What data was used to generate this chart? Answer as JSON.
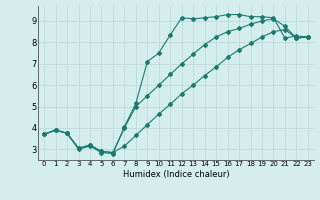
{
  "title": "",
  "xlabel": "Humidex (Indice chaleur)",
  "bg_color": "#d4eeee",
  "grid_color": "#c0d8d8",
  "line_color": "#1a7a6e",
  "xlim": [
    -0.5,
    23.5
  ],
  "ylim": [
    2.5,
    9.7
  ],
  "xticks": [
    0,
    1,
    2,
    3,
    4,
    5,
    6,
    7,
    8,
    9,
    10,
    11,
    12,
    13,
    14,
    15,
    16,
    17,
    18,
    19,
    20,
    21,
    22,
    23
  ],
  "yticks": [
    3,
    4,
    5,
    6,
    7,
    8,
    9
  ],
  "line1_x": [
    0,
    1,
    2,
    3,
    4,
    5,
    6,
    7,
    8,
    9,
    10,
    11,
    12,
    13,
    14,
    15,
    16,
    17,
    18,
    19,
    20,
    21,
    22,
    23
  ],
  "line1_y": [
    3.7,
    3.9,
    3.75,
    3.0,
    3.15,
    2.85,
    2.8,
    4.05,
    5.15,
    7.1,
    7.5,
    8.35,
    9.15,
    9.1,
    9.15,
    9.2,
    9.3,
    9.3,
    9.2,
    9.2,
    9.15,
    8.2,
    8.3,
    8.25
  ],
  "line2_x": [
    0,
    1,
    2,
    3,
    4,
    5,
    6,
    7,
    8,
    9,
    10,
    11,
    12,
    13,
    14,
    15,
    16,
    17,
    18,
    19,
    20,
    21,
    22,
    23
  ],
  "line2_y": [
    3.7,
    3.9,
    3.75,
    3.05,
    3.2,
    2.9,
    2.85,
    4.0,
    5.0,
    5.5,
    6.0,
    6.5,
    7.0,
    7.45,
    7.9,
    8.25,
    8.5,
    8.65,
    8.85,
    9.0,
    9.1,
    8.75,
    8.2,
    8.25
  ],
  "line3_x": [
    0,
    1,
    2,
    3,
    4,
    5,
    6,
    7,
    8,
    9,
    10,
    11,
    12,
    13,
    14,
    15,
    16,
    17,
    18,
    19,
    20,
    21,
    22,
    23
  ],
  "line3_y": [
    3.7,
    3.9,
    3.75,
    3.05,
    3.2,
    2.9,
    2.85,
    3.15,
    3.65,
    4.15,
    4.65,
    5.1,
    5.6,
    6.0,
    6.45,
    6.85,
    7.3,
    7.65,
    7.95,
    8.25,
    8.5,
    8.6,
    8.2,
    8.25
  ]
}
